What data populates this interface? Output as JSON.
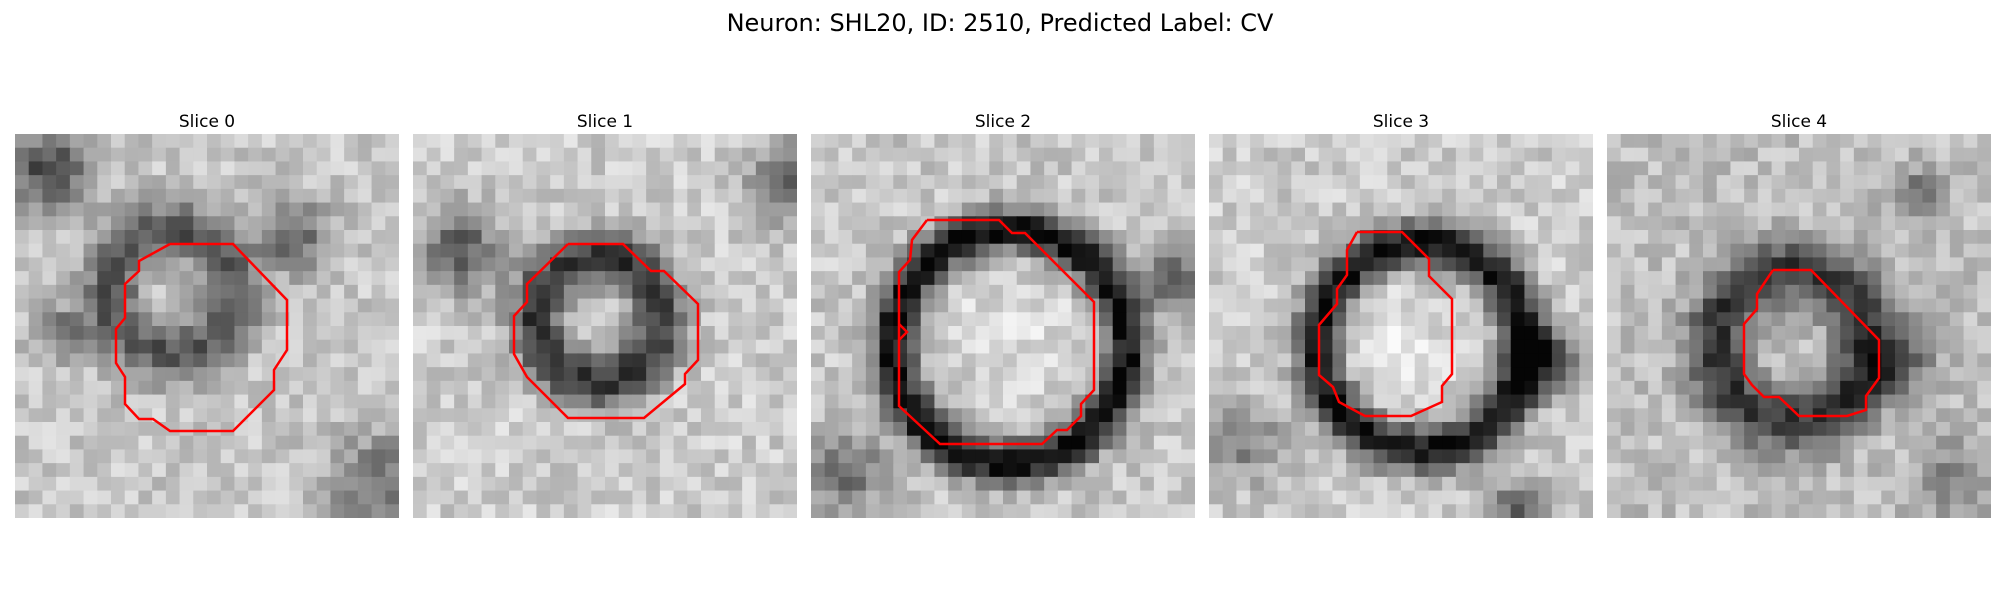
{
  "figure": {
    "title": "Neuron: SHL20, ID: 2510, Predicted Label: CV"
  },
  "colors": {
    "contour": "#ff0000",
    "background": "#ffffff",
    "colormap": "gray"
  },
  "slices": [
    {
      "label": "Slice 0"
    },
    {
      "label": "Slice 1"
    },
    {
      "label": "Slice 2"
    },
    {
      "label": "Slice 3"
    },
    {
      "label": "Slice 4"
    }
  ]
}
